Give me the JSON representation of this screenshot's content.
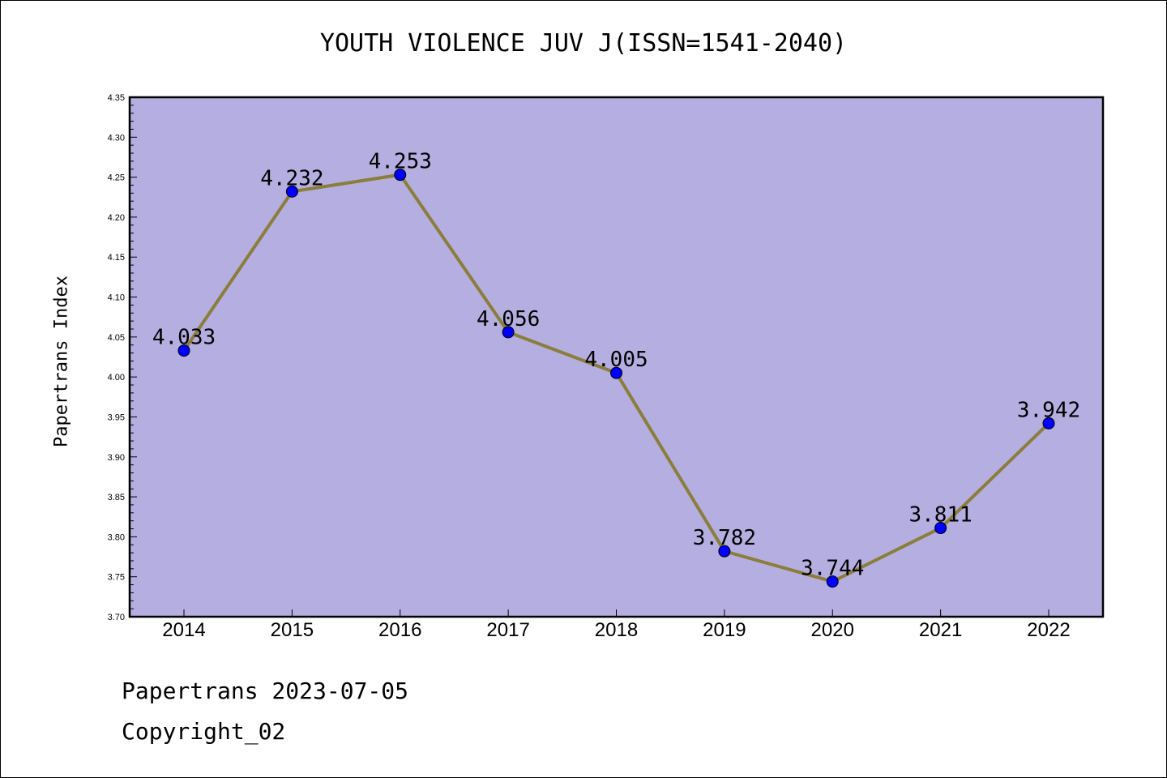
{
  "chart_data": {
    "type": "line",
    "title": "YOUTH VIOLENCE JUV J(ISSN=1541-2040)",
    "xlabel": "",
    "ylabel": "Papertrans Index",
    "categories": [
      "2014",
      "2015",
      "2016",
      "2017",
      "2018",
      "2019",
      "2020",
      "2021",
      "2022"
    ],
    "values": [
      4.033,
      4.232,
      4.253,
      4.056,
      4.005,
      3.782,
      3.744,
      3.811,
      3.942
    ],
    "data_labels": [
      "4.033",
      "4.232",
      "4.253",
      "4.056",
      "4.005",
      "3.782",
      "3.744",
      "3.811",
      "3.942"
    ],
    "ylim": [
      3.7,
      4.35
    ],
    "yticks": [
      "3.70",
      "3.75",
      "3.80",
      "3.85",
      "3.90",
      "3.95",
      "4.00",
      "4.05",
      "4.10",
      "4.15",
      "4.20",
      "4.25",
      "4.30",
      "4.35"
    ],
    "grid": false,
    "colors": {
      "plot_background": "#b5aee1",
      "line": "#8b7d3a",
      "marker": "#0000ff"
    }
  },
  "footer": {
    "line1": "Papertrans 2023-07-05",
    "line2": "Copyright_02"
  }
}
